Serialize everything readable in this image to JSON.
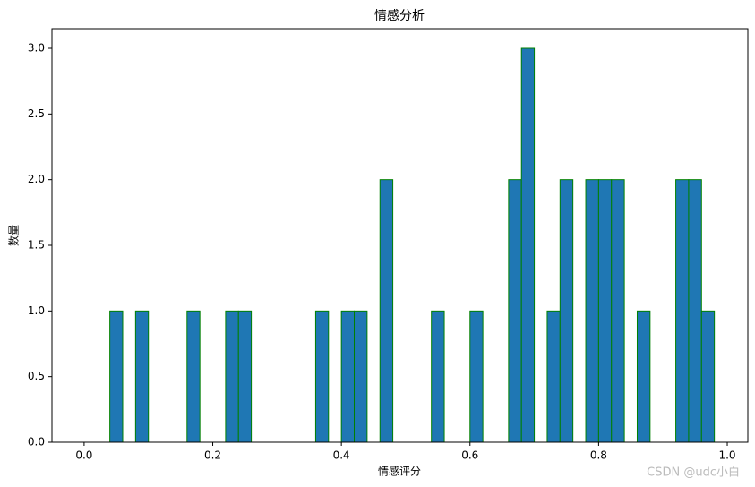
{
  "chart_data": {
    "type": "histogram",
    "title": "情感分析",
    "xlabel": "情感评分",
    "ylabel": "数量",
    "bins": [
      0.04,
      0.06,
      0.08,
      0.1,
      0.12,
      0.14,
      0.16,
      0.18,
      0.2,
      0.22,
      0.24,
      0.26,
      0.28,
      0.3,
      0.32,
      0.34,
      0.36,
      0.38,
      0.4,
      0.42,
      0.44,
      0.46,
      0.48,
      0.5,
      0.52,
      0.54,
      0.56,
      0.58,
      0.6,
      0.62,
      0.64,
      0.66,
      0.68,
      0.7,
      0.72,
      0.74,
      0.76,
      0.78,
      0.8,
      0.82,
      0.84,
      0.86,
      0.88,
      0.9,
      0.92,
      0.94,
      0.96,
      0.98
    ],
    "values": [
      1,
      0,
      1,
      0,
      0,
      0,
      1,
      0,
      0,
      1,
      1,
      0,
      0,
      0,
      0,
      0,
      1,
      0,
      1,
      1,
      0,
      2,
      0,
      0,
      0,
      1,
      0,
      0,
      1,
      0,
      0,
      2,
      3,
      0,
      1,
      2,
      0,
      2,
      2,
      2,
      0,
      1,
      0,
      0,
      2,
      2,
      1
    ],
    "color": "#1f77b4",
    "edgecolor": "#008000",
    "xlim": [
      -0.05,
      1.032
    ],
    "ylim": [
      0,
      3.15
    ],
    "xticks": [
      {
        "value": 0,
        "label": "0.0"
      },
      {
        "value": 0.2,
        "label": "0.2"
      },
      {
        "value": 0.4,
        "label": "0.4"
      },
      {
        "value": 0.6,
        "label": "0.6"
      },
      {
        "value": 0.8,
        "label": "0.8"
      },
      {
        "value": 1,
        "label": "1.0"
      }
    ],
    "yticks": [
      {
        "value": 0,
        "label": "0.0"
      },
      {
        "value": 0.5,
        "label": "0.5"
      },
      {
        "value": 1,
        "label": "1.0"
      },
      {
        "value": 1.5,
        "label": "1.5"
      },
      {
        "value": 2,
        "label": "2.0"
      },
      {
        "value": 2.5,
        "label": "2.5"
      },
      {
        "value": 3,
        "label": "3.0"
      }
    ],
    "grid": false,
    "watermark": "CSDN @udc小白"
  }
}
